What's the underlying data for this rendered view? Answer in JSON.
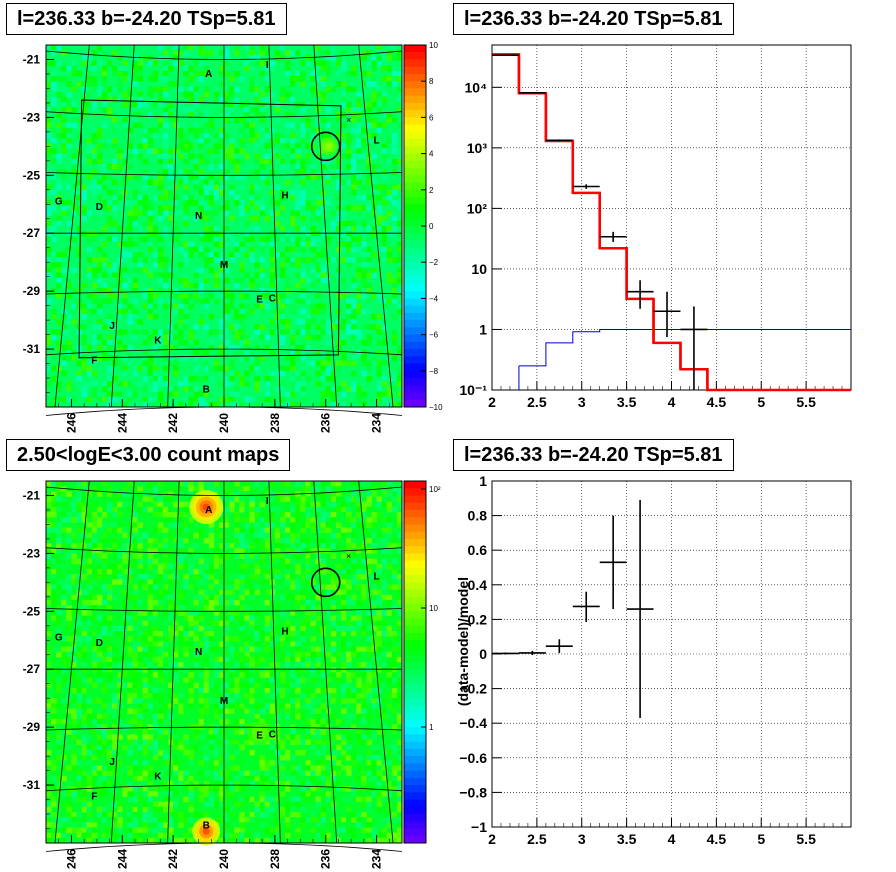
{
  "panels": {
    "top_left": {
      "title": "l=236.33 b=-24.20 TSp=5.81",
      "x_ticks": [
        "246",
        "244",
        "242",
        "240",
        "238",
        "236",
        "234"
      ],
      "y_ticks": [
        "-21",
        "-23",
        "-25",
        "-27",
        "-29",
        "-31"
      ],
      "colorbar_ticks": [
        "10",
        "8",
        "6",
        "4",
        "2",
        "0",
        "−2",
        "−4",
        "−6",
        "−8",
        "−10"
      ],
      "source_labels": [
        "A",
        "I",
        "L",
        "G",
        "D",
        "N",
        "H",
        "M",
        "E",
        "C",
        "J",
        "K",
        "F",
        "B"
      ]
    },
    "bottom_left": {
      "title": "2.50<logE<3.00 count maps",
      "x_ticks": [
        "246",
        "244",
        "242",
        "240",
        "238",
        "236",
        "234"
      ],
      "y_ticks": [
        "-21",
        "-23",
        "-25",
        "-27",
        "-29",
        "-31"
      ],
      "colorbar_ticks": [
        "10²",
        "10",
        "1"
      ],
      "source_labels": [
        "A",
        "I",
        "L",
        "G",
        "D",
        "N",
        "H",
        "M",
        "E",
        "C",
        "J",
        "K",
        "F",
        "B"
      ]
    },
    "top_right": {
      "title": "l=236.33 b=-24.20 TSp=5.81",
      "x_ticks": [
        "2",
        "2.5",
        "3",
        "3.5",
        "4",
        "4.5",
        "5",
        "5.5"
      ],
      "y_ticks": [
        "10⁻¹",
        "1",
        "10",
        "10²",
        "10³",
        "10⁴"
      ]
    },
    "bottom_right": {
      "title": "l=236.33 b=-24.20 TSp=5.81",
      "ylabel": "(data-model)/model",
      "x_ticks": [
        "2",
        "2.5",
        "3",
        "3.5",
        "4",
        "4.5",
        "5",
        "5.5"
      ],
      "y_ticks": [
        "1",
        "0.8",
        "0.6",
        "0.4",
        "0.2",
        "0",
        "−0.2",
        "−0.4",
        "−0.6",
        "−0.8",
        "−1"
      ]
    }
  },
  "chart_data": [
    {
      "type": "heatmap",
      "title": "l=236.33 b=-24.20 TSp=5.81",
      "xlim": [
        247,
        233
      ],
      "ylim": [
        -33,
        -20.5
      ],
      "zlim": [
        -10,
        10
      ],
      "grid": true
    },
    {
      "type": "line",
      "title": "l=236.33 b=-24.20 TSp=5.81",
      "xlim": [
        2,
        6
      ],
      "ylim": [
        0.1,
        50000
      ],
      "yscale": "log",
      "grid": true,
      "series": [
        {
          "color": "#ff0000",
          "edges": [
            2.0,
            2.3,
            2.6,
            2.9,
            3.2,
            3.5,
            3.8,
            4.1,
            4.4,
            6.0
          ],
          "values": [
            35000,
            8000,
            1300,
            180,
            22,
            3.2,
            0.6,
            0.22,
            0.1
          ]
        },
        {
          "color": "#0000cc",
          "edges": [
            2.3,
            2.6,
            2.9,
            3.2,
            3.5,
            3.8,
            6.0
          ],
          "values": [
            0.25,
            0.6,
            0.92,
            1.0,
            1.0,
            1.0
          ]
        },
        {
          "type": "errorbars",
          "color": "#000000",
          "points": [
            {
              "x": 2.15,
              "xerr": 0.15,
              "y": 34000,
              "ylo": 33500,
              "yhi": 34500
            },
            {
              "x": 2.45,
              "xerr": 0.15,
              "y": 8100,
              "ylo": 7900,
              "yhi": 8300
            },
            {
              "x": 2.75,
              "xerr": 0.15,
              "y": 1330,
              "ylo": 1280,
              "yhi": 1380
            },
            {
              "x": 3.05,
              "xerr": 0.15,
              "y": 230,
              "ylo": 210,
              "yhi": 250
            },
            {
              "x": 3.35,
              "xerr": 0.15,
              "y": 34,
              "ylo": 28,
              "yhi": 41
            },
            {
              "x": 3.65,
              "xerr": 0.15,
              "y": 4.2,
              "ylo": 2.2,
              "yhi": 6.5
            },
            {
              "x": 3.95,
              "xerr": 0.15,
              "y": 2.0,
              "ylo": 0.75,
              "yhi": 4.2
            },
            {
              "x": 4.25,
              "xerr": 0.15,
              "y": 1.0,
              "ylo": 0.1,
              "yhi": 2.4
            }
          ]
        }
      ]
    },
    {
      "type": "heatmap",
      "title": "2.50<logE<3.00 count maps",
      "xlim": [
        247,
        233
      ],
      "ylim": [
        -33,
        -20.5
      ],
      "zscale": "log",
      "grid": true
    },
    {
      "type": "scatter",
      "title": "l=236.33 b=-24.20 TSp=5.81",
      "ylabel": "(data-model)/model",
      "xlim": [
        2,
        6
      ],
      "ylim": [
        -1,
        1
      ],
      "grid": true,
      "points": [
        {
          "x": 2.15,
          "xerr": 0.15,
          "y": 0.003,
          "ylo": -0.003,
          "yhi": 0.009
        },
        {
          "x": 2.45,
          "xerr": 0.15,
          "y": 0.006,
          "ylo": -0.006,
          "yhi": 0.018
        },
        {
          "x": 2.75,
          "xerr": 0.15,
          "y": 0.045,
          "ylo": 0.005,
          "yhi": 0.085
        },
        {
          "x": 3.05,
          "xerr": 0.15,
          "y": 0.275,
          "ylo": 0.185,
          "yhi": 0.36
        },
        {
          "x": 3.35,
          "xerr": 0.15,
          "y": 0.53,
          "ylo": 0.26,
          "yhi": 0.8
        },
        {
          "x": 3.65,
          "xerr": 0.15,
          "y": 0.26,
          "ylo": -0.37,
          "yhi": 0.89
        }
      ]
    }
  ]
}
